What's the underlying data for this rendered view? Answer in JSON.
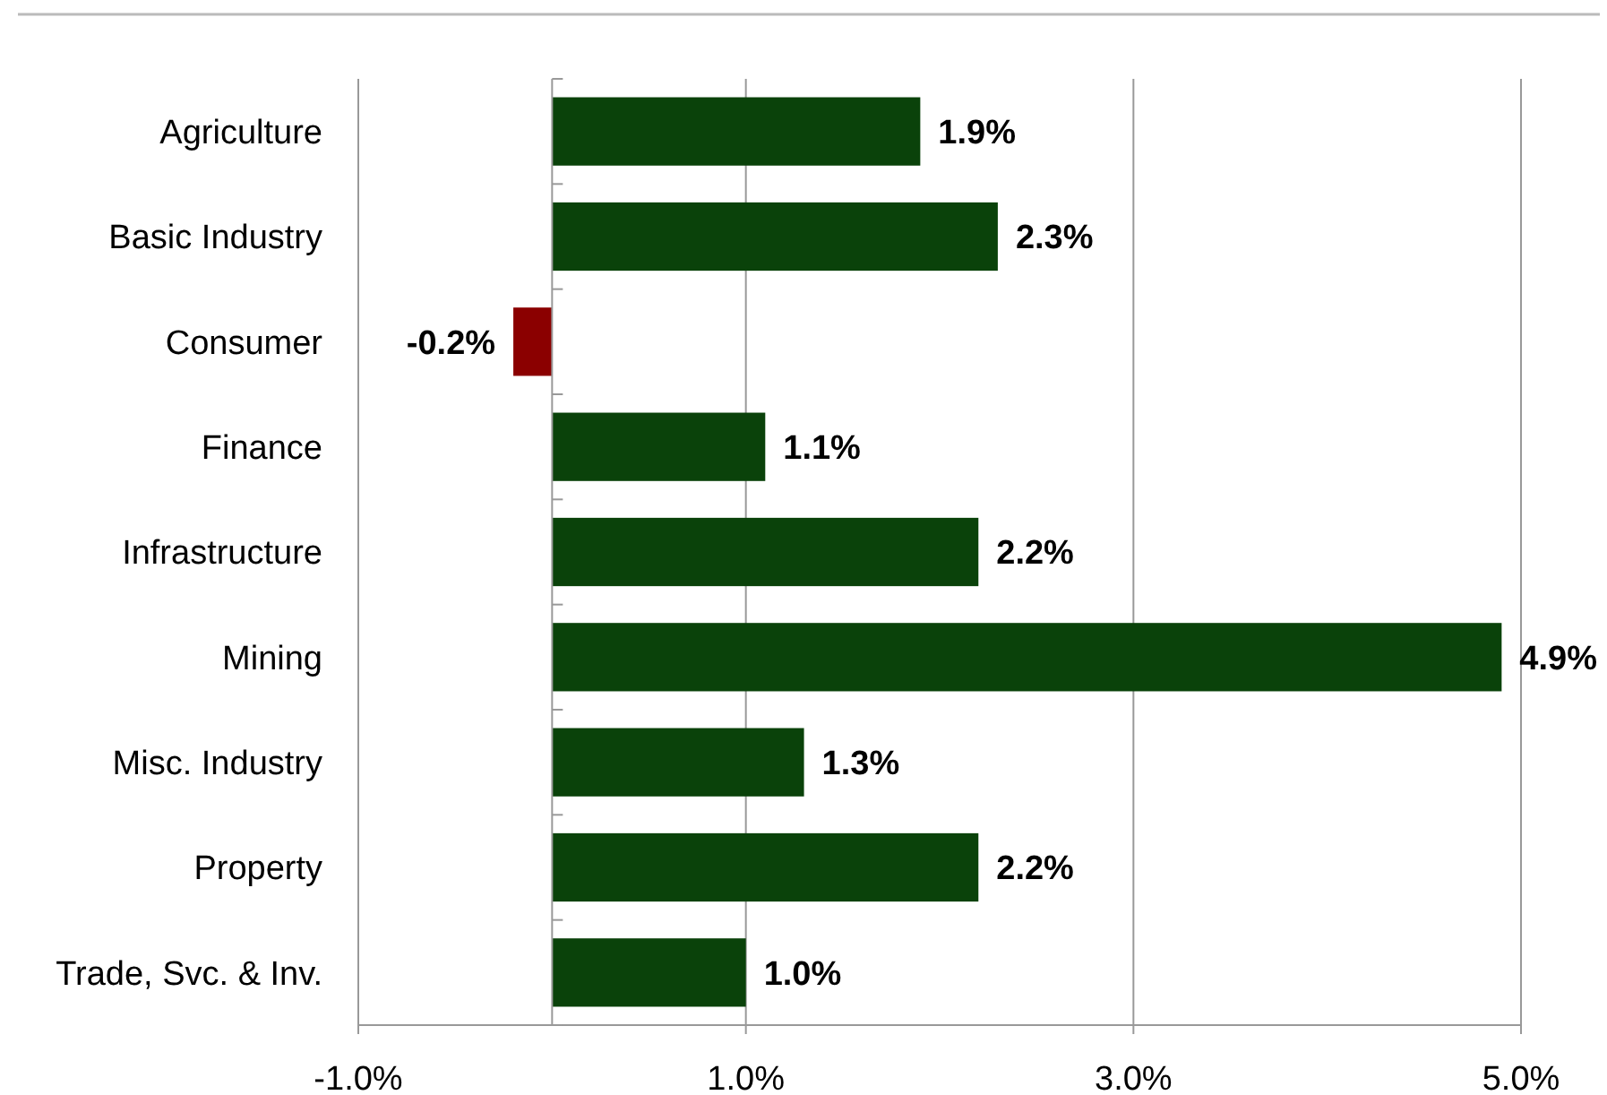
{
  "chart_data": {
    "type": "bar",
    "orientation": "horizontal",
    "categories": [
      "Agriculture",
      "Basic Industry",
      "Consumer",
      "Finance",
      "Infrastructure",
      "Mining",
      "Misc. Industry",
      "Property",
      "Trade, Svc. & Inv."
    ],
    "values": [
      1.9,
      2.3,
      -0.2,
      1.1,
      2.2,
      4.9,
      1.3,
      2.2,
      1.0
    ],
    "colors": [
      "#0a420a",
      "#0a420a",
      "#8b0000",
      "#0a420a",
      "#0a420a",
      "#0a420a",
      "#0a420a",
      "#0a420a",
      "#0a420a"
    ],
    "value_labels": [
      "1.9%",
      "2.3%",
      "-0.2%",
      "1.1%",
      "2.2%",
      "4.9%",
      "1.3%",
      "2.2%",
      "1.0%"
    ],
    "xlim": [
      -1,
      5
    ],
    "xticks": [
      {
        "value": -1,
        "label": "-1.0%"
      },
      {
        "value": 1,
        "label": "1.0%"
      },
      {
        "value": 3,
        "label": "3.0%"
      },
      {
        "value": 5,
        "label": "5.0%"
      }
    ],
    "grid": "x"
  }
}
